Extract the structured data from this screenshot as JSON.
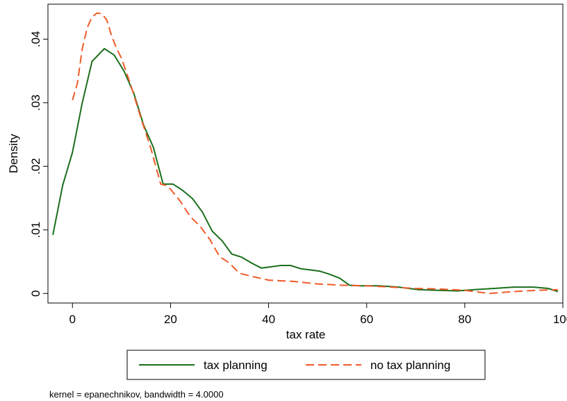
{
  "chart_data": {
    "type": "line",
    "xlabel": "tax rate",
    "ylabel": "Density",
    "xlim": [
      -5,
      100
    ],
    "ylim": [
      -0.0015,
      0.0455
    ],
    "x_ticks": [
      0,
      20,
      40,
      60,
      80,
      100
    ],
    "x_tick_labels": [
      "0",
      "20",
      "40",
      "60",
      "80",
      "100"
    ],
    "y_ticks": [
      0,
      0.01,
      0.02,
      0.03,
      0.04
    ],
    "y_tick_labels": [
      "0",
      ".01",
      ".02",
      ".03",
      ".04"
    ],
    "grid": false,
    "legend_position": "bottom",
    "note": "kernel = epanechnikov, bandwidth = 4.0000",
    "series": [
      {
        "name": "tax planning",
        "color": "#1a6e1a",
        "dash": "solid",
        "x": [
          -4,
          -2,
          0,
          2,
          4,
          6.5,
          8.5,
          10.5,
          12.5,
          14.5,
          16.5,
          18.5,
          20.5,
          22.5,
          24.5,
          26.5,
          28.5,
          30.5,
          32.5,
          34.5,
          36.5,
          38.5,
          40.5,
          42.5,
          44.5,
          46.5,
          48.5,
          50.5,
          52.5,
          54.5,
          56.5,
          58.5,
          60.5,
          62.5,
          66.5,
          70.5,
          74.5,
          78.5,
          82,
          86,
          90,
          94,
          97,
          99
        ],
        "y": [
          0.0092,
          0.017,
          0.0222,
          0.03,
          0.0365,
          0.0385,
          0.0375,
          0.035,
          0.0315,
          0.0265,
          0.023,
          0.0172,
          0.0172,
          0.0162,
          0.0149,
          0.0128,
          0.0098,
          0.0083,
          0.0062,
          0.0057,
          0.0048,
          0.004,
          0.0042,
          0.0044,
          0.0044,
          0.0039,
          0.0037,
          0.0035,
          0.003,
          0.0024,
          0.0013,
          0.0012,
          0.0012,
          0.0012,
          0.001,
          0.0006,
          0.0005,
          0.0004,
          0.0006,
          0.0008,
          0.001,
          0.001,
          0.0008,
          0.0003
        ]
      },
      {
        "name": "no tax planning",
        "color": "#f05a28",
        "dash": "dashed",
        "x": [
          0,
          1,
          2,
          3,
          4,
          5,
          6,
          7,
          8,
          9,
          10,
          12,
          14,
          16,
          18,
          19,
          20,
          22,
          24,
          26,
          28,
          30,
          32,
          34,
          36,
          40,
          45,
          50,
          55,
          60,
          65,
          70,
          75,
          80,
          85,
          90,
          95,
          99
        ],
        "y": [
          0.0304,
          0.033,
          0.0385,
          0.0418,
          0.0435,
          0.0441,
          0.044,
          0.043,
          0.0405,
          0.0385,
          0.037,
          0.0325,
          0.0275,
          0.0228,
          0.0172,
          0.017,
          0.0164,
          0.0145,
          0.0121,
          0.0106,
          0.0085,
          0.0058,
          0.0048,
          0.0032,
          0.0028,
          0.0021,
          0.0019,
          0.0015,
          0.0013,
          0.0012,
          0.001,
          0.0008,
          0.0007,
          0.0005,
          0.0,
          0.0003,
          0.0005,
          0.0006
        ]
      }
    ]
  }
}
